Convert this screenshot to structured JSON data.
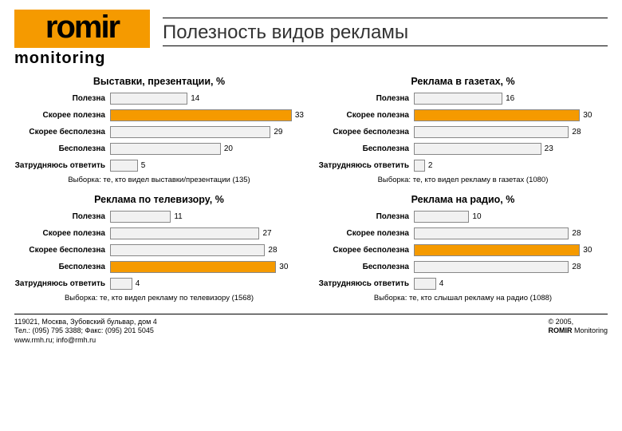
{
  "logo": {
    "main": "romir",
    "sub": "monitoring"
  },
  "title": "Полезность видов рекламы",
  "palette": {
    "bar_highlight": "#f59a00",
    "bar_default": "#f1f1f1",
    "bar_border": "#888888",
    "text": "#000000",
    "bg": "#ffffff"
  },
  "axis": {
    "max": 35
  },
  "categories": [
    "Полезна",
    "Скорее полезна",
    "Скорее бесполезна",
    "Бесполезна",
    "Затрудняюсь ответить"
  ],
  "charts": [
    {
      "title": "Выставки, презентации, %",
      "caption": "Выборка: те, кто видел выставки/презентации  (135)",
      "values": [
        14,
        33,
        29,
        20,
        5
      ],
      "highlight_index": 1
    },
    {
      "title": "Реклама в газетах, %",
      "caption": "Выборка: те, кто видел рекламу в газетах  (1080)",
      "values": [
        16,
        30,
        28,
        23,
        2
      ],
      "highlight_index": 1
    },
    {
      "title": "Реклама по телевизору, %",
      "caption": "Выборка: те, кто видел рекламу по телевизору (1568)",
      "values": [
        11,
        27,
        28,
        30,
        4
      ],
      "highlight_index": 3
    },
    {
      "title": "Реклама на радио, %",
      "caption": "Выборка: те, кто слышал рекламу на радио (1088)",
      "values": [
        10,
        28,
        30,
        28,
        4
      ],
      "highlight_index": 2
    }
  ],
  "footer": {
    "address": "119021, Москва, Зубовский бульвар, дом 4",
    "phone": "Тел.: (095) 795 3388; Факс: (095) 201 5045",
    "web": "www.rmh.ru; info@rmh.ru",
    "copyright_line1": "© 2005,",
    "copyright_line2_bold": "ROMIR",
    "copyright_line2_rest": " Monitoring"
  }
}
